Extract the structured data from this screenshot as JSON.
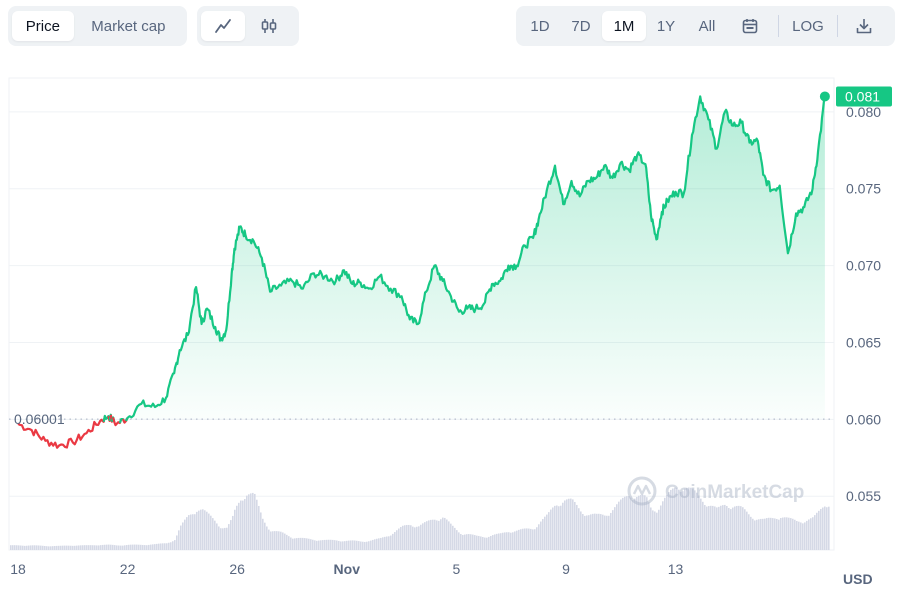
{
  "toolbar": {
    "type_tabs": [
      {
        "label": "Price",
        "active": true
      },
      {
        "label": "Market cap",
        "active": false
      }
    ],
    "chart_style": [
      {
        "icon": "line-chart-icon",
        "active": true
      },
      {
        "icon": "candlestick-icon",
        "active": false
      }
    ],
    "ranges": [
      {
        "label": "1D",
        "active": false
      },
      {
        "label": "7D",
        "active": false
      },
      {
        "label": "1M",
        "active": true
      },
      {
        "label": "1Y",
        "active": false
      },
      {
        "label": "All",
        "active": false
      }
    ],
    "calendar_icon": "calendar-icon",
    "log_label": "LOG",
    "download_icon": "download-icon"
  },
  "watermark": "CoinMarketCap",
  "colors": {
    "up": "#16c784",
    "down": "#ea3943",
    "grid": "#eff2f5",
    "text": "#58667e"
  },
  "chart_data": {
    "type": "line",
    "currency_label": "USD",
    "x_ticks": [
      "18",
      "22",
      "26",
      "Nov",
      "5",
      "9",
      "13"
    ],
    "y_ticks": [
      "0.080",
      "0.075",
      "0.070",
      "0.065",
      "0.060",
      "0.055"
    ],
    "ylim": [
      0.0515,
      0.0822
    ],
    "xlim_days": [
      0,
      29.6
    ],
    "baseline_label": "0.06001",
    "baseline": 0.06001,
    "current_label": "0.081",
    "current": 0.081,
    "x_tick_days": [
      0,
      4,
      8,
      12,
      16,
      20,
      24
    ],
    "series": [
      {
        "x_days": [
          0,
          0.5,
          1.0,
          1.5,
          2.0,
          2.5,
          3.0,
          3.3,
          3.6,
          4.0,
          4.5,
          5.0,
          5.4,
          5.7,
          5.9,
          6.2,
          6.5,
          6.7,
          6.9,
          7.2,
          7.4,
          7.6,
          7.8,
          7.9,
          8.1,
          8.3,
          8.6,
          8.9,
          9.2,
          9.6,
          10.0,
          10.4,
          10.8,
          11.2,
          11.6,
          11.9,
          12.2,
          12.5,
          12.8,
          13.2,
          13.6,
          14.0,
          14.3,
          14.6,
          14.9,
          15.2,
          15.5,
          15.8,
          16.1,
          16.4,
          16.7,
          17.0,
          17.3,
          17.6,
          17.9,
          18.2,
          18.5,
          18.8,
          19.0,
          19.3,
          19.6,
          19.9,
          20.2,
          20.5,
          20.8,
          21.1,
          21.4,
          21.7,
          22.0,
          22.3,
          22.6,
          22.9,
          23.1,
          23.3,
          23.5,
          23.7,
          24.0,
          24.3,
          24.6,
          24.9,
          25.2,
          25.5,
          25.8,
          26.1,
          26.4,
          26.7,
          27.0,
          27.2,
          27.5,
          27.8,
          28.1,
          28.4,
          28.7,
          29.0,
          29.2,
          29.45
        ],
        "price": [
          0.0597,
          0.0593,
          0.0586,
          0.0583,
          0.0585,
          0.0591,
          0.0599,
          0.0602,
          0.0597,
          0.0601,
          0.061,
          0.0608,
          0.0614,
          0.063,
          0.0645,
          0.0655,
          0.0686,
          0.0662,
          0.0672,
          0.066,
          0.0652,
          0.0658,
          0.0695,
          0.0711,
          0.0725,
          0.072,
          0.0716,
          0.0705,
          0.0683,
          0.0687,
          0.069,
          0.0685,
          0.0695,
          0.0693,
          0.069,
          0.0697,
          0.0688,
          0.0689,
          0.0685,
          0.0693,
          0.0685,
          0.068,
          0.0665,
          0.0662,
          0.0683,
          0.07,
          0.069,
          0.068,
          0.067,
          0.0672,
          0.0672,
          0.0675,
          0.0688,
          0.069,
          0.07,
          0.07,
          0.0713,
          0.0718,
          0.073,
          0.0749,
          0.0765,
          0.074,
          0.0755,
          0.0745,
          0.0755,
          0.0757,
          0.0765,
          0.0757,
          0.0767,
          0.0762,
          0.0772,
          0.0766,
          0.0733,
          0.0717,
          0.0735,
          0.0742,
          0.0748,
          0.0747,
          0.0785,
          0.081,
          0.0795,
          0.0776,
          0.08,
          0.0791,
          0.0793,
          0.078,
          0.0781,
          0.0759,
          0.0749,
          0.0752,
          0.0708,
          0.0734,
          0.0738,
          0.075,
          0.0774,
          0.081
        ],
        "volume": [
          0.08,
          0.08,
          0.07,
          0.07,
          0.08,
          0.08,
          0.09,
          0.09,
          0.08,
          0.09,
          0.09,
          0.1,
          0.12,
          0.18,
          0.4,
          0.6,
          0.72,
          0.7,
          0.62,
          0.5,
          0.4,
          0.38,
          0.55,
          0.7,
          0.9,
          1.0,
          0.95,
          0.55,
          0.34,
          0.3,
          0.22,
          0.2,
          0.18,
          0.17,
          0.17,
          0.16,
          0.16,
          0.15,
          0.16,
          0.2,
          0.28,
          0.4,
          0.45,
          0.42,
          0.48,
          0.55,
          0.58,
          0.42,
          0.3,
          0.28,
          0.24,
          0.23,
          0.26,
          0.28,
          0.33,
          0.34,
          0.36,
          0.38,
          0.48,
          0.6,
          0.8,
          0.88,
          0.85,
          0.7,
          0.62,
          0.6,
          0.62,
          0.72,
          0.85,
          0.98,
          0.95,
          0.9,
          0.7,
          0.72,
          0.85,
          0.95,
          1.1,
          1.12,
          1.02,
          0.9,
          0.8,
          0.7,
          0.8,
          0.78,
          0.72,
          0.6,
          0.55,
          0.52,
          0.55,
          0.6,
          0.54,
          0.5,
          0.52,
          0.55,
          0.66,
          0.82
        ]
      }
    ],
    "xlabel": "",
    "ylabel": "",
    "grid": true,
    "legend": "none"
  }
}
